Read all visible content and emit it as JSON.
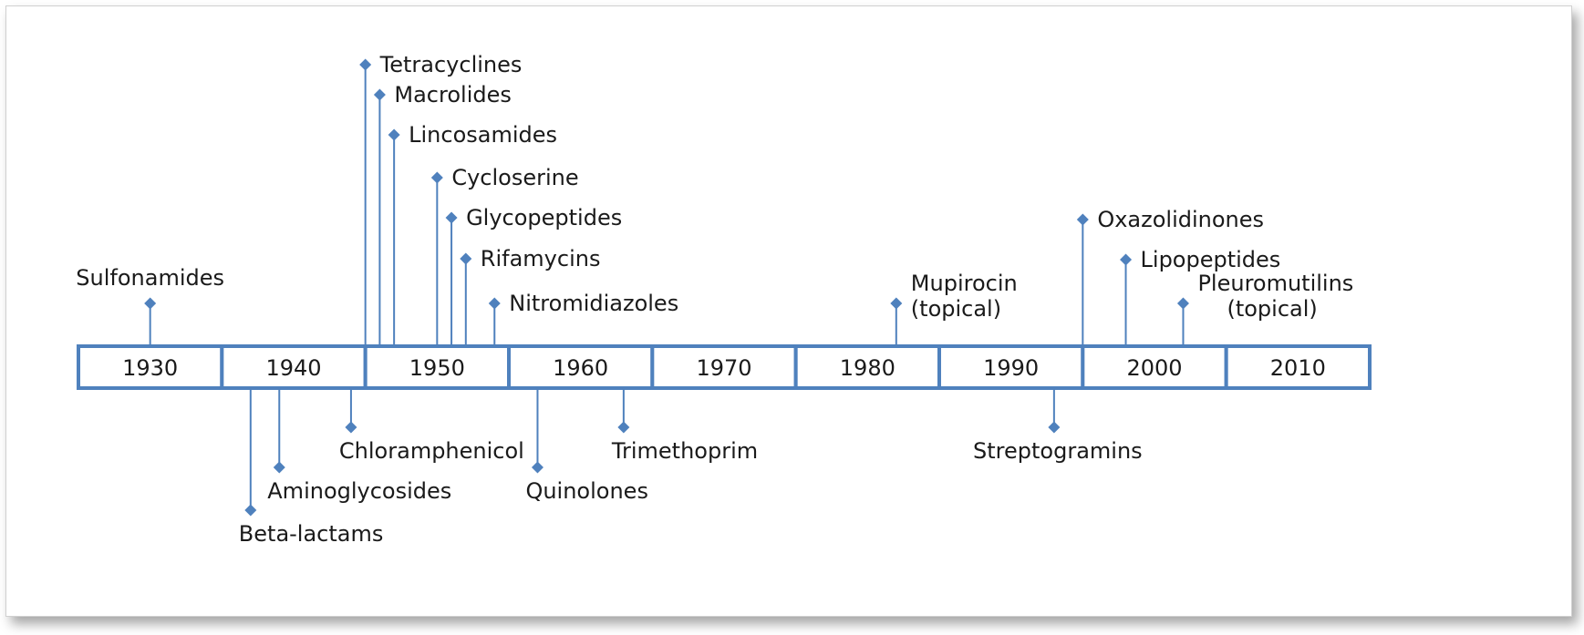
{
  "decades": [
    "1930",
    "1940",
    "1950",
    "1960",
    "1970",
    "1980",
    "1990",
    "2000",
    "2010"
  ],
  "colors": {
    "line": "#4f81bd",
    "marker": "#4f81bd",
    "text": "#1a1a1a"
  },
  "events": [
    {
      "lines": [
        "Sulfonamides"
      ],
      "year": 1935,
      "side": "above"
    },
    {
      "lines": [
        "Tetracyclines"
      ],
      "year": 1950,
      "side": "above"
    },
    {
      "lines": [
        "Macrolides"
      ],
      "year": 1951,
      "side": "above"
    },
    {
      "lines": [
        "Lincosamides"
      ],
      "year": 1952,
      "side": "above"
    },
    {
      "lines": [
        "Cycloserine"
      ],
      "year": 1955,
      "side": "above"
    },
    {
      "lines": [
        "Glycopeptides"
      ],
      "year": 1956,
      "side": "above"
    },
    {
      "lines": [
        "Rifamycins"
      ],
      "year": 1957,
      "side": "above"
    },
    {
      "lines": [
        "Nitromidiazoles"
      ],
      "year": 1959,
      "side": "above"
    },
    {
      "lines": [
        "Mupirocin",
        "(topical)"
      ],
      "year": 1987,
      "side": "above"
    },
    {
      "lines": [
        "Oxazolidinones"
      ],
      "year": 2000,
      "side": "above"
    },
    {
      "lines": [
        "Lipopeptides"
      ],
      "year": 2003,
      "side": "above"
    },
    {
      "lines": [
        "Pleuromutilins",
        "(topical)"
      ],
      "year": 2007,
      "side": "above",
      "align": "right"
    },
    {
      "lines": [
        "Beta-lactams"
      ],
      "year": 1942,
      "side": "below"
    },
    {
      "lines": [
        "Aminoglycosides"
      ],
      "year": 1944,
      "side": "below"
    },
    {
      "lines": [
        "Chloramphenicol"
      ],
      "year": 1949,
      "side": "below"
    },
    {
      "lines": [
        "Quinolones"
      ],
      "year": 1962,
      "side": "below"
    },
    {
      "lines": [
        "Trimethoprim"
      ],
      "year": 1968,
      "side": "below"
    },
    {
      "lines": [
        "Streptogramins"
      ],
      "year": 1998,
      "side": "below"
    }
  ]
}
